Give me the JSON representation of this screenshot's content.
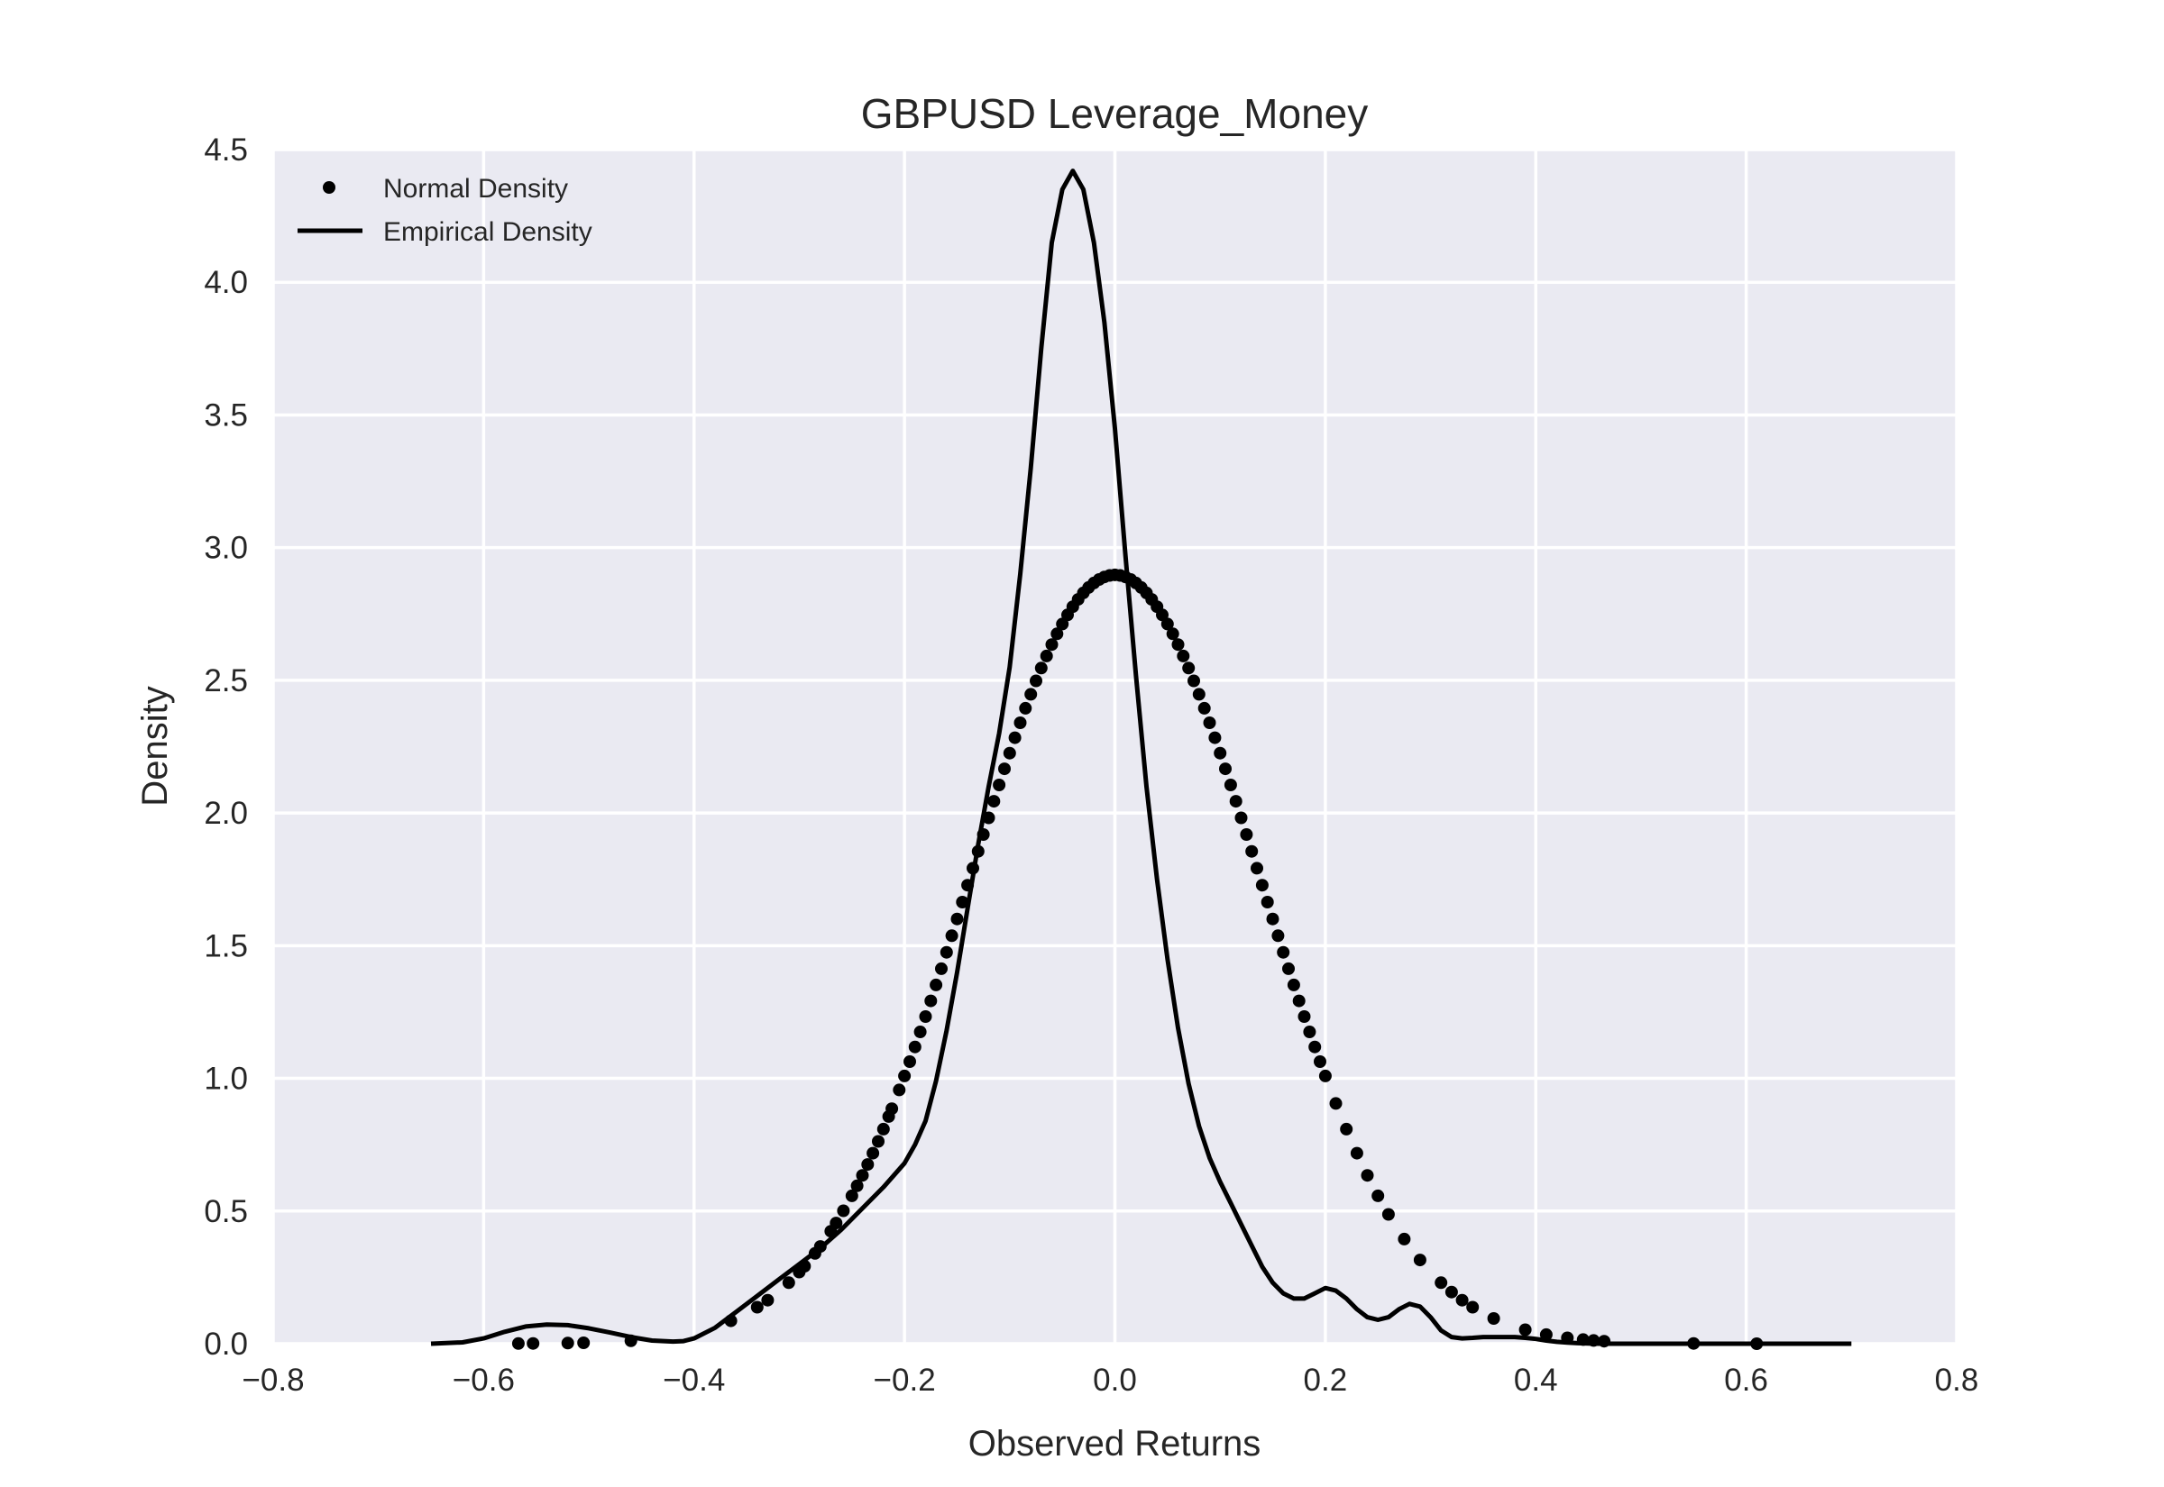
{
  "chart_data": {
    "type": "line",
    "title": "GBPUSD Leverage_Money",
    "xlabel": "Observed Returns",
    "ylabel": "Density",
    "xlim": [
      -0.8,
      0.8
    ],
    "ylim": [
      0,
      4.5
    ],
    "grid": true,
    "legend_position": "top-left",
    "x_ticks": [
      -0.8,
      -0.6,
      -0.4,
      -0.2,
      0.0,
      0.2,
      0.4,
      0.6,
      0.8
    ],
    "x_tick_labels": [
      "−0.8",
      "−0.6",
      "−0.4",
      "−0.2",
      "0.0",
      "0.2",
      "0.4",
      "0.6",
      "0.8"
    ],
    "y_ticks": [
      0.0,
      0.5,
      1.0,
      1.5,
      2.0,
      2.5,
      3.0,
      3.5,
      4.0,
      4.5
    ],
    "y_tick_labels": [
      "0.0",
      "0.5",
      "1.0",
      "1.5",
      "2.0",
      "2.5",
      "3.0",
      "3.5",
      "4.0",
      "4.5"
    ],
    "colors": {
      "background": "#eaeaf2",
      "grid": "#ffffff",
      "series": "#000000"
    },
    "series": [
      {
        "name": "Normal Density",
        "style": "points",
        "normal_mu": 0.0,
        "normal_sigma": 0.1377,
        "x": [
          -0.567,
          -0.553,
          -0.52,
          -0.505,
          -0.46,
          -0.365,
          -0.34,
          -0.33,
          -0.31,
          -0.3,
          -0.295,
          -0.285,
          -0.28,
          -0.27,
          -0.265,
          -0.258,
          -0.25,
          -0.245,
          -0.24,
          -0.235,
          -0.23,
          -0.225,
          -0.22,
          -0.215,
          -0.212,
          -0.205,
          -0.2,
          -0.195,
          -0.19,
          -0.185,
          -0.18,
          -0.175,
          -0.17,
          -0.165,
          -0.16,
          -0.155,
          -0.15,
          -0.145,
          -0.14,
          -0.135,
          -0.13,
          -0.125,
          -0.12,
          -0.115,
          -0.11,
          -0.105,
          -0.1,
          -0.095,
          -0.09,
          -0.085,
          -0.08,
          -0.075,
          -0.07,
          -0.065,
          -0.06,
          -0.055,
          -0.05,
          -0.045,
          -0.04,
          -0.035,
          -0.03,
          -0.025,
          -0.02,
          -0.015,
          -0.01,
          -0.005,
          0.0,
          0.005,
          0.01,
          0.015,
          0.02,
          0.025,
          0.03,
          0.035,
          0.04,
          0.045,
          0.05,
          0.055,
          0.06,
          0.065,
          0.07,
          0.075,
          0.08,
          0.085,
          0.09,
          0.095,
          0.1,
          0.105,
          0.11,
          0.115,
          0.12,
          0.125,
          0.13,
          0.135,
          0.14,
          0.145,
          0.15,
          0.155,
          0.16,
          0.165,
          0.17,
          0.175,
          0.18,
          0.185,
          0.19,
          0.195,
          0.2,
          0.21,
          0.22,
          0.23,
          0.24,
          0.25,
          0.26,
          0.275,
          0.29,
          0.31,
          0.32,
          0.33,
          0.34,
          0.36,
          0.39,
          0.41,
          0.43,
          0.445,
          0.455,
          0.465,
          0.55,
          0.61
        ]
      },
      {
        "name": "Empirical Density",
        "style": "line",
        "x": [
          -0.65,
          -0.62,
          -0.6,
          -0.58,
          -0.56,
          -0.54,
          -0.52,
          -0.5,
          -0.48,
          -0.46,
          -0.44,
          -0.42,
          -0.41,
          -0.4,
          -0.38,
          -0.36,
          -0.34,
          -0.32,
          -0.3,
          -0.28,
          -0.26,
          -0.24,
          -0.22,
          -0.2,
          -0.19,
          -0.18,
          -0.17,
          -0.16,
          -0.15,
          -0.14,
          -0.13,
          -0.12,
          -0.11,
          -0.1,
          -0.09,
          -0.08,
          -0.07,
          -0.06,
          -0.05,
          -0.04,
          -0.03,
          -0.02,
          -0.01,
          0.0,
          0.01,
          0.02,
          0.03,
          0.04,
          0.05,
          0.06,
          0.07,
          0.08,
          0.09,
          0.1,
          0.11,
          0.12,
          0.13,
          0.14,
          0.15,
          0.16,
          0.17,
          0.18,
          0.19,
          0.2,
          0.21,
          0.22,
          0.23,
          0.24,
          0.25,
          0.26,
          0.27,
          0.28,
          0.29,
          0.3,
          0.31,
          0.32,
          0.33,
          0.34,
          0.35,
          0.36,
          0.37,
          0.38,
          0.39,
          0.4,
          0.41,
          0.42,
          0.43,
          0.44,
          0.45,
          0.46,
          0.47,
          0.48,
          0.49,
          0.5,
          0.52,
          0.54,
          0.56,
          0.58,
          0.6,
          0.62,
          0.64,
          0.66,
          0.7
        ],
        "y": [
          0.0,
          0.005,
          0.02,
          0.045,
          0.065,
          0.072,
          0.07,
          0.058,
          0.042,
          0.025,
          0.012,
          0.008,
          0.01,
          0.02,
          0.06,
          0.12,
          0.18,
          0.24,
          0.3,
          0.36,
          0.43,
          0.51,
          0.59,
          0.68,
          0.75,
          0.84,
          0.99,
          1.18,
          1.4,
          1.64,
          1.88,
          2.1,
          2.3,
          2.55,
          2.9,
          3.3,
          3.75,
          4.15,
          4.35,
          4.42,
          4.35,
          4.15,
          3.85,
          3.45,
          2.97,
          2.52,
          2.1,
          1.75,
          1.45,
          1.19,
          0.98,
          0.82,
          0.7,
          0.61,
          0.53,
          0.45,
          0.37,
          0.29,
          0.23,
          0.19,
          0.17,
          0.17,
          0.19,
          0.21,
          0.2,
          0.17,
          0.13,
          0.1,
          0.09,
          0.1,
          0.13,
          0.15,
          0.14,
          0.1,
          0.05,
          0.025,
          0.02,
          0.022,
          0.025,
          0.025,
          0.025,
          0.025,
          0.022,
          0.018,
          0.012,
          0.007,
          0.004,
          0.002,
          0.001,
          0.0,
          0.0,
          0.0,
          0.0,
          0.0,
          0.0,
          0.0,
          0.0,
          0.0,
          0.0,
          0.0,
          0.0,
          0.0,
          0.0
        ]
      }
    ]
  }
}
